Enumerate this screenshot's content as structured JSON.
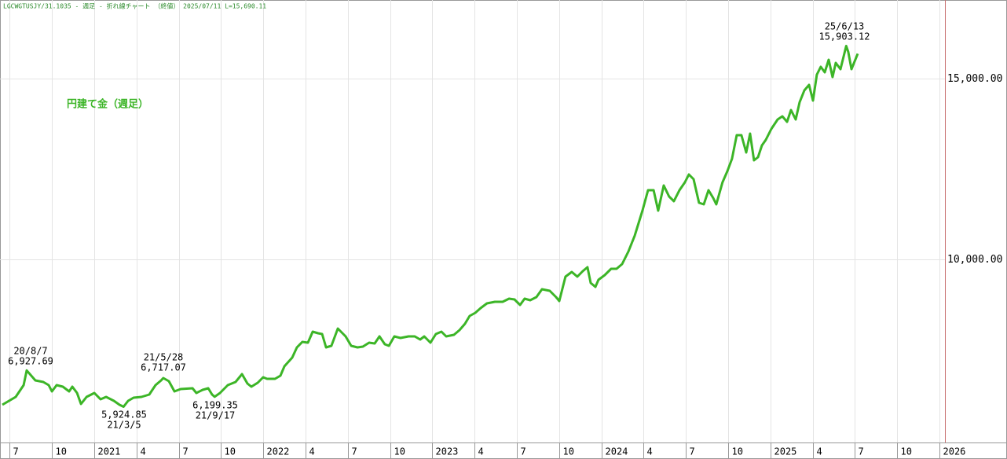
{
  "chart_data": {
    "type": "line",
    "header": "LGCWGTUSJY/31.1035 - 週足 - 折れ線チャート （終値）  2025/07/11 L=15,690.11",
    "x": [
      2020.456,
      2020.535,
      2020.582,
      2020.6,
      2020.651,
      2020.698,
      2020.73,
      2020.749,
      2020.777,
      2020.814,
      2020.851,
      2020.87,
      2020.898,
      2020.921,
      2020.954,
      2021.0,
      2021.037,
      2021.07,
      2021.116,
      2021.149,
      2021.173,
      2021.2,
      2021.232,
      2021.279,
      2021.325,
      2021.362,
      2021.395,
      2021.408,
      2021.441,
      2021.474,
      2021.511,
      2021.581,
      2021.604,
      2021.641,
      2021.674,
      2021.697,
      2021.712,
      2021.744,
      2021.79,
      2021.836,
      2021.874,
      2021.906,
      2021.929,
      2021.967,
      2021.999,
      2022.022,
      2022.069,
      2022.101,
      2022.125,
      2022.171,
      2022.199,
      2022.231,
      2022.264,
      2022.292,
      2022.324,
      2022.348,
      2022.371,
      2022.403,
      2022.441,
      2022.487,
      2022.52,
      2022.557,
      2022.589,
      2022.626,
      2022.659,
      2022.687,
      2022.719,
      2022.743,
      2022.775,
      2022.812,
      2022.859,
      2022.896,
      2022.928,
      2022.952,
      2022.989,
      2023.021,
      2023.054,
      2023.082,
      2023.128,
      2023.161,
      2023.193,
      2023.221,
      2023.254,
      2023.286,
      2023.323,
      2023.37,
      2023.416,
      2023.454,
      2023.486,
      2023.519,
      2023.546,
      2023.579,
      2023.616,
      2023.649,
      2023.695,
      2023.732,
      2023.751,
      2023.788,
      2023.825,
      2023.858,
      2023.89,
      2023.918,
      2023.937,
      2023.965,
      2023.983,
      2024.02,
      2024.058,
      2024.09,
      2024.123,
      2024.16,
      2024.197,
      2024.243,
      2024.276,
      2024.309,
      2024.336,
      2024.369,
      2024.401,
      2024.429,
      2024.462,
      2024.494,
      2024.518,
      2024.546,
      2024.578,
      2024.606,
      2024.634,
      2024.662,
      2024.68,
      2024.717,
      2024.745,
      2024.773,
      2024.801,
      2024.829,
      2024.857,
      2024.88,
      2024.903,
      2024.927,
      2024.95,
      2024.973,
      2025.006,
      2025.043,
      2025.071,
      2025.099,
      2025.122,
      2025.15,
      2025.173,
      2025.201,
      2025.229,
      2025.252,
      2025.275,
      2025.298,
      2025.322,
      2025.345,
      2025.368,
      2025.387,
      2025.415,
      2025.449,
      2025.461,
      2025.48,
      2025.517
    ],
    "series": [
      {
        "name": "円建て金（週足）",
        "color": "#3cb527",
        "values": [
          5978,
          6196,
          6522,
          6927.69,
          6652,
          6609,
          6522,
          6348,
          6522,
          6478,
          6348,
          6478,
          6304,
          6000,
          6196,
          6304,
          6130,
          6196,
          6087,
          5978,
          5924.85,
          6087,
          6174,
          6196,
          6261,
          6522,
          6652,
          6717.07,
          6630,
          6348,
          6413,
          6435,
          6304,
          6391,
          6435,
          6261,
          6199.35,
          6304,
          6522,
          6609,
          6826,
          6565,
          6478,
          6587,
          6739,
          6696,
          6696,
          6783,
          7043,
          7283,
          7565,
          7717,
          7696,
          8000,
          7957,
          7935,
          7565,
          7609,
          8087,
          7870,
          7609,
          7565,
          7587,
          7696,
          7674,
          7870,
          7652,
          7609,
          7870,
          7826,
          7870,
          7870,
          7783,
          7870,
          7696,
          7935,
          8000,
          7870,
          7913,
          8043,
          8217,
          8435,
          8522,
          8652,
          8783,
          8826,
          8826,
          8913,
          8891,
          8739,
          8913,
          8870,
          8957,
          9174,
          9130,
          8957,
          8848,
          9522,
          9652,
          9522,
          9674,
          9783,
          9348,
          9239,
          9435,
          9565,
          9739,
          9739,
          9870,
          10217,
          10652,
          11348,
          11913,
          11913,
          11348,
          12043,
          11739,
          11609,
          11913,
          12130,
          12348,
          12217,
          11565,
          11522,
          11913,
          11696,
          11522,
          12130,
          12435,
          12783,
          13435,
          13435,
          12957,
          13478,
          12739,
          12826,
          13152,
          13304,
          13609,
          13870,
          13957,
          13804,
          14130,
          13870,
          14348,
          14674,
          14826,
          14391,
          15109,
          15326,
          15174,
          15522,
          15043,
          15435,
          15261,
          15903.12,
          15739,
          15261,
          15690.11
        ]
      }
    ],
    "annotations": [
      [
        "20/8/7",
        "6,927.69"
      ],
      [
        "5,924.85",
        "21/3/5"
      ],
      [
        "21/5/28",
        "6,717.07"
      ],
      [
        "6,199.35",
        "21/9/17"
      ],
      [
        "25/6/13",
        "15,903.12"
      ]
    ],
    "xlim": [
      2020.442,
      2026.033
    ],
    "ylim": [
      4935,
      17174
    ],
    "xticks": [
      {
        "value": 2020.5,
        "label": "7"
      },
      {
        "value": 2020.75,
        "label": "10"
      },
      2021,
      {
        "value": 2021.25,
        "label": "4"
      },
      {
        "value": 2021.5,
        "label": "7"
      },
      {
        "value": 2021.75,
        "label": "10"
      },
      2022,
      {
        "value": 2022.25,
        "label": "4"
      },
      {
        "value": 2022.5,
        "label": "7"
      },
      {
        "value": 2022.75,
        "label": "10"
      },
      2023,
      {
        "value": 2023.25,
        "label": "4"
      },
      {
        "value": 2023.5,
        "label": "7"
      },
      {
        "value": 2023.75,
        "label": "10"
      },
      2024,
      {
        "value": 2024.25,
        "label": "4"
      },
      {
        "value": 2024.5,
        "label": "7"
      },
      {
        "value": 2024.75,
        "label": "10"
      },
      2025,
      {
        "value": 2025.25,
        "label": "4"
      },
      {
        "value": 2025.5,
        "label": "7"
      },
      {
        "value": 2025.75,
        "label": "10"
      },
      2026
    ],
    "yticks": [
      {
        "value": 10000,
        "label": "10,000.00"
      },
      {
        "value": 15000,
        "label": "15,000.00"
      }
    ],
    "grid": true
  }
}
